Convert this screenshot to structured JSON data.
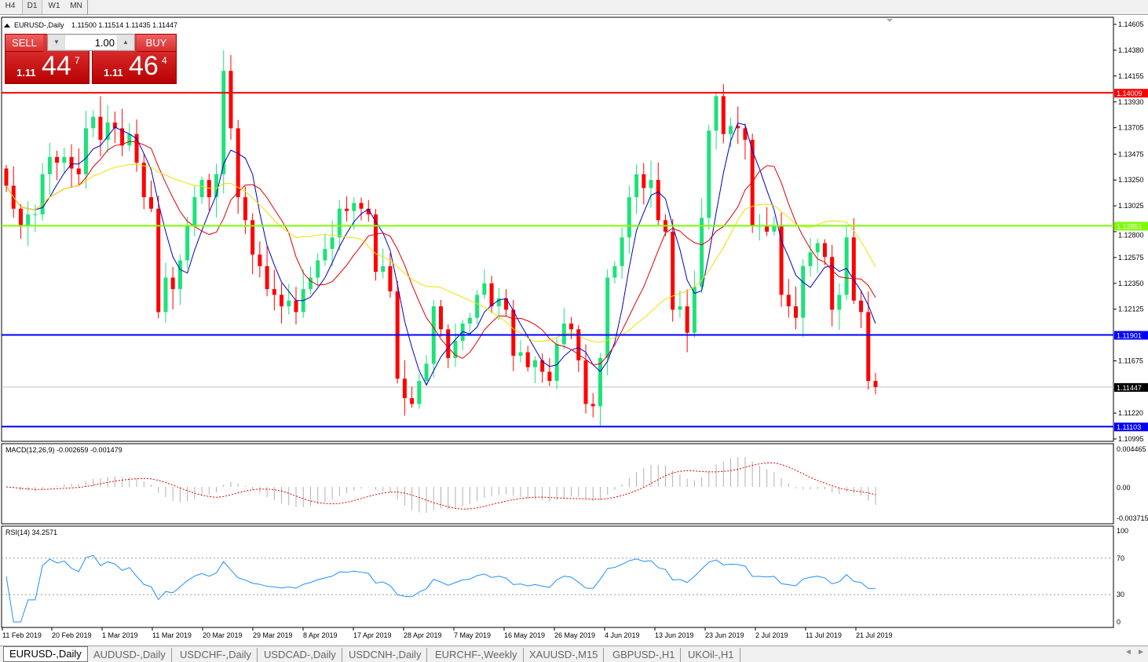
{
  "timeframes": [
    "H4",
    "D1",
    "W1",
    "MN"
  ],
  "active_timeframe": "D1",
  "chart": {
    "symbol_label": "EURUSD-,Daily",
    "ohlc": "1.11500 1.11514 1.11435 1.11447",
    "trade_panel": {
      "sell_label": "SELL",
      "buy_label": "BUY",
      "lot": "1.00",
      "sell_prefix": "1.11",
      "sell_big": "44",
      "sell_sup": "7",
      "buy_prefix": "1.11",
      "buy_big": "46",
      "buy_sup": "4"
    }
  },
  "tabs": [
    "EURUSD-,Daily",
    "AUDUSD-,Daily",
    "USDCHF-,Daily",
    "USDCAD-,Daily",
    "USDCNH-,Daily",
    "EURCHF-,Weekly",
    "XAUUSD-,M15",
    "GBPUSD-,H1",
    "UKOil-,H1"
  ],
  "active_tab": 0,
  "colors": {
    "bull": "#1de27a",
    "bear": "#ff0000",
    "ma_fast": "#0000c8",
    "ma_mid": "#e00000",
    "ma_slow": "#f0e000",
    "level_red": "#ff0000",
    "level_green": "#7cfc00",
    "level_blue": "#0000ff",
    "rsi": "#1e90ff",
    "macd_signal": "#e00000"
  },
  "chart_data": {
    "type": "candlestick",
    "price_ticks": [
      "1.14605",
      "1.14380",
      "1.14155",
      "1.13930",
      "1.13705",
      "1.13475",
      "1.13250",
      "1.13025",
      "1.12800",
      "1.12575",
      "1.12350",
      "1.12125",
      "1.11675",
      "1.11220",
      "1.10995"
    ],
    "ylim": [
      1.10995,
      1.14605
    ],
    "levels": [
      {
        "value": "1.14009",
        "color": "#ff0000"
      },
      {
        "value": "1.12851",
        "color": "#7cfc00"
      },
      {
        "value": "1.11901",
        "color": "#0000ff"
      },
      {
        "value": "1.11103",
        "color": "#0000ff"
      }
    ],
    "current_price": "1.11447",
    "date_ticks": [
      "11 Feb 2019",
      "20 Feb 2019",
      "1 Mar 2019",
      "11 Mar 2019",
      "20 Mar 2019",
      "29 Mar 2019",
      "8 Apr 2019",
      "17 Apr 2019",
      "28 Apr 2019",
      "7 May 2019",
      "16 May 2019",
      "26 May 2019",
      "4 Jun 2019",
      "13 Jun 2019",
      "23 Jun 2019",
      "2 Jul 2019",
      "11 Jul 2019",
      "21 Jul 2019"
    ],
    "closes": [
      1.132,
      1.13,
      1.1285,
      1.1295,
      1.1295,
      1.133,
      1.1345,
      1.134,
      1.1345,
      1.1335,
      1.133,
      1.137,
      1.138,
      1.136,
      1.1375,
      1.137,
      1.1355,
      1.1365,
      1.134,
      1.131,
      1.13,
      1.121,
      1.124,
      1.123,
      1.1255,
      1.1285,
      1.131,
      1.1325,
      1.131,
      1.133,
      1.142,
      1.137,
      1.131,
      1.129,
      1.126,
      1.125,
      1.123,
      1.1225,
      1.1215,
      1.122,
      1.121,
      1.123,
      1.124,
      1.1255,
      1.1265,
      1.1275,
      1.13,
      1.1298,
      1.1305,
      1.13,
      1.1295,
      1.1245,
      1.125,
      1.1228,
      1.1152,
      1.1135,
      1.113,
      1.115,
      1.1165,
      1.1215,
      1.1195,
      1.117,
      1.1185,
      1.12,
      1.1205,
      1.1225,
      1.1235,
      1.1215,
      1.1222,
      1.1212,
      1.1172,
      1.1175,
      1.1162,
      1.1168,
      1.1158,
      1.115,
      1.1182,
      1.12,
      1.1195,
      1.1168,
      1.113,
      1.1128,
      1.117,
      1.124,
      1.125,
      1.1275,
      1.131,
      1.133,
      1.1318,
      1.1325,
      1.129,
      1.128,
      1.1212,
      1.1215,
      1.1192,
      1.1232,
      1.1292,
      1.1368,
      1.1398,
      1.1365,
      1.1372,
      1.137,
      1.136,
      1.1285,
      1.1285,
      1.128,
      1.1285,
      1.1225,
      1.1215,
      1.1205,
      1.125,
      1.1262,
      1.127,
      1.1258,
      1.1212,
      1.1225,
      1.1275,
      1.122,
      1.121,
      1.115,
      1.11447
    ],
    "macd": {
      "label": "MACD(12,26,9) -0.002659 -0.001479",
      "ticks": [
        "0.004465",
        "0.00",
        "-0.003715"
      ],
      "ylim": [
        -0.003715,
        0.004465
      ]
    },
    "rsi": {
      "label": "RSI(14) 34.2571",
      "ticks": [
        "100",
        "70",
        "30",
        "0"
      ],
      "levels": [
        70,
        30
      ]
    }
  }
}
